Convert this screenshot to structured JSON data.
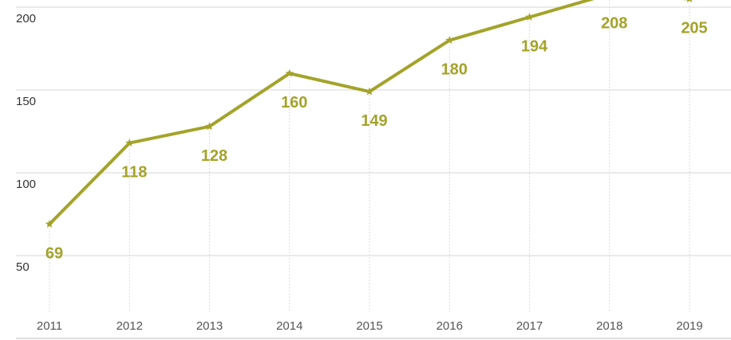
{
  "chart_data": {
    "type": "line",
    "title": "",
    "xlabel": "",
    "ylabel": "",
    "categories": [
      "2011",
      "2012",
      "2013",
      "2014",
      "2015",
      "2016",
      "2017",
      "2018",
      "2019"
    ],
    "series": [
      {
        "values": [
          69,
          118,
          128,
          160,
          149,
          180,
          194,
          208,
          205
        ],
        "color": "#a3a32a",
        "marker": "star"
      }
    ],
    "y_ticks": [
      "50",
      "100",
      "150",
      "200"
    ],
    "ylim": [
      30,
      208
    ],
    "grid": true,
    "data_labels": true,
    "legend": "none"
  }
}
